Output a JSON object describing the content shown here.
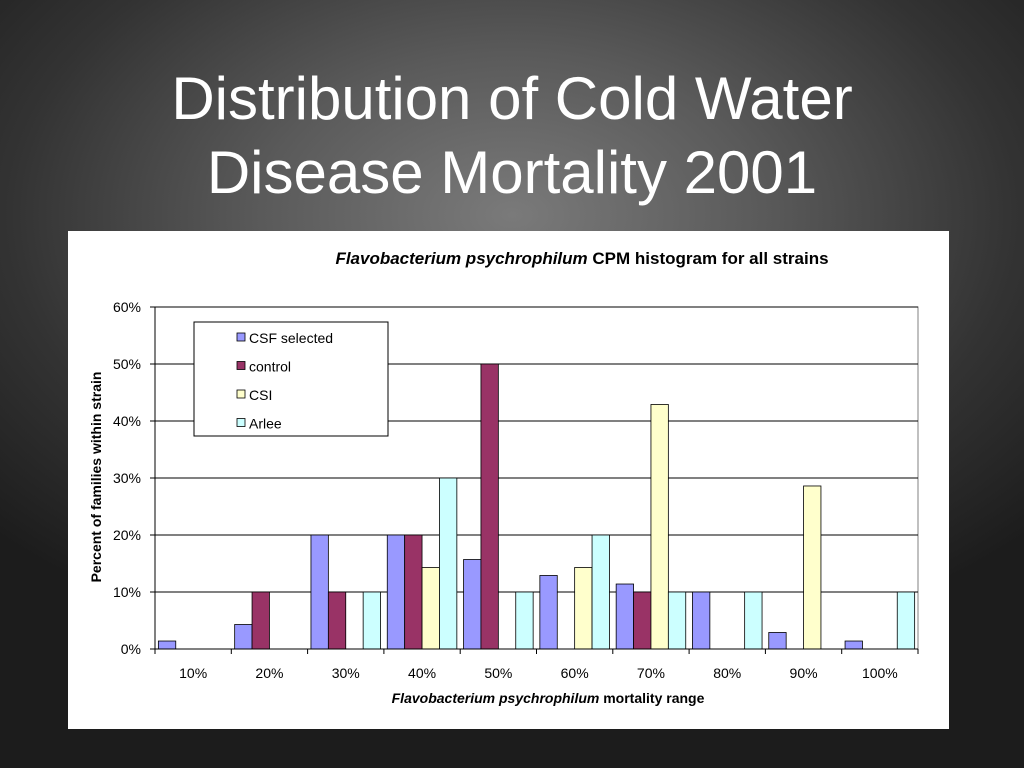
{
  "slide": {
    "title_line1": "Distribution of Cold Water",
    "title_line2": "Disease Mortality 2001"
  },
  "colors": {
    "background": "#3a3a3a",
    "series": [
      "#9999ff",
      "#993366",
      "#ffffcc",
      "#ccffff"
    ]
  },
  "chart_data": {
    "type": "bar",
    "title_italic": "Flavobacterium psychrophilum",
    "title_rest": " CPM histogram for all strains",
    "xlabel_italic": "Flavobacterium psychrophilum",
    "xlabel_rest": " mortality range",
    "ylabel": "Percent of families within strain",
    "categories": [
      "10%",
      "20%",
      "30%",
      "40%",
      "50%",
      "60%",
      "70%",
      "80%",
      "90%",
      "100%"
    ],
    "ylim": [
      0,
      60
    ],
    "yticks": [
      "0%",
      "10%",
      "20%",
      "30%",
      "40%",
      "50%",
      "60%"
    ],
    "grid": true,
    "legend_position": "top-left inside plot",
    "series": [
      {
        "name": "CSF selected",
        "values": [
          1.4,
          4.3,
          20,
          20,
          15.7,
          12.9,
          11.4,
          10,
          2.9,
          1.4
        ]
      },
      {
        "name": "control",
        "values": [
          0,
          10,
          10,
          20,
          50,
          0,
          10,
          0,
          0,
          0
        ]
      },
      {
        "name": "CSI",
        "values": [
          0,
          0,
          0,
          14.3,
          0,
          14.3,
          42.9,
          0,
          28.6,
          0
        ]
      },
      {
        "name": "Arlee",
        "values": [
          0,
          0,
          10,
          30,
          10,
          20,
          10,
          10,
          0,
          10
        ]
      }
    ]
  }
}
